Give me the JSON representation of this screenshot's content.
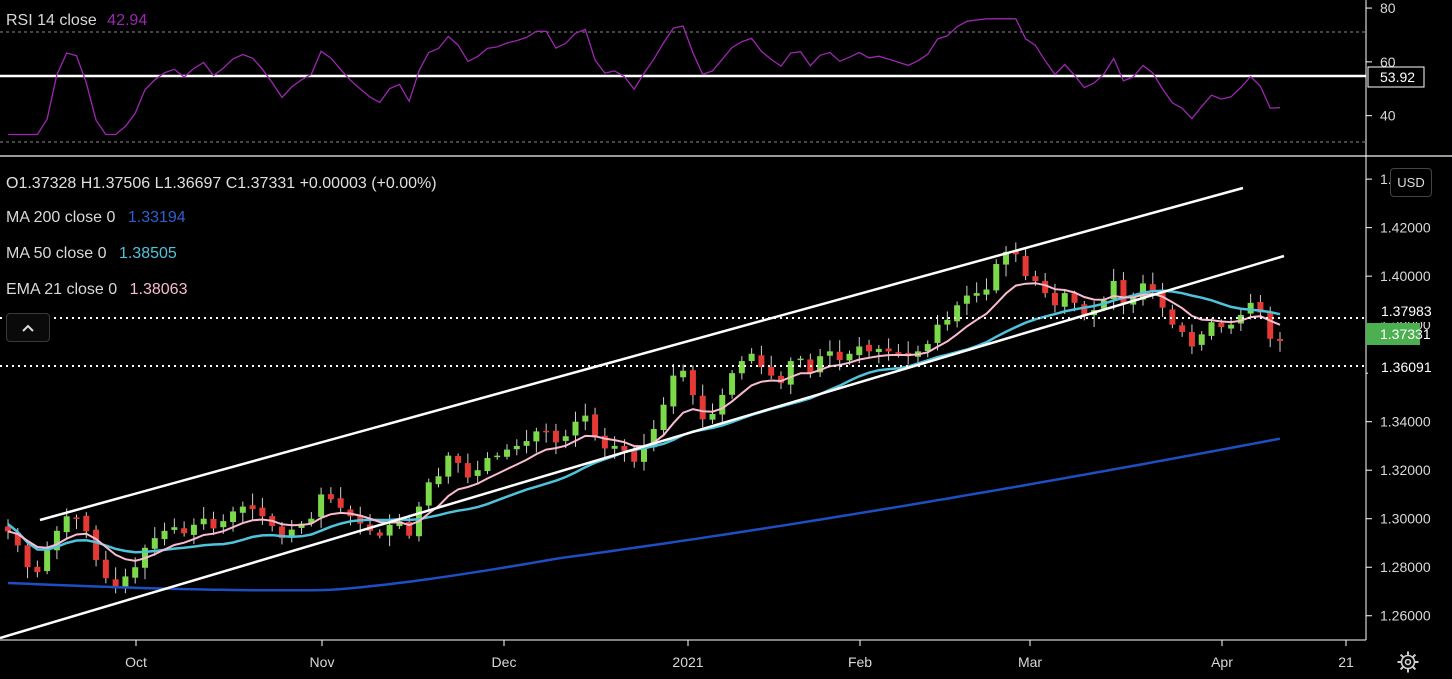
{
  "rsi": {
    "title": "RSI 14 close",
    "value_label": "42.94",
    "color": "#9c27b0",
    "ticks": [
      40,
      60,
      80
    ],
    "upper_band": 70,
    "lower_band": 30,
    "marker_level": "53.92",
    "ylim": [
      25,
      83
    ]
  },
  "price_legend": {
    "ohlc": "O1.37328  H1.37506  L1.36697  C1.37331  +0.00003 (+0.00%)",
    "ma200": {
      "label": "MA 200 close 0",
      "value": "1.33194",
      "color": "#1e4fc2"
    },
    "ma50": {
      "label": "MA 50 close 0",
      "value": "1.38505",
      "color": "#4fc3dc"
    },
    "ema21": {
      "label": "EMA 21 close 0",
      "value": "1.38063",
      "color": "#f8bbd0"
    }
  },
  "currency_button": "USD",
  "price_levels": {
    "upper": "1.37983",
    "current": "1.37331",
    "lower": "1.36091",
    "current_color": "#4caf50"
  },
  "chart_data": {
    "type": "candlestick",
    "ylim": [
      1.25,
      1.445
    ],
    "y_ticks": [
      "1.26000",
      "1.28000",
      "1.30000",
      "1.32000",
      "1.34000",
      "1.36000",
      "1.38000",
      "1.40000",
      "1.42000",
      "1.44000"
    ],
    "x_ticks": [
      "Oct",
      "Nov",
      "Dec",
      "2021",
      "Feb",
      "Mar",
      "Apr",
      "21"
    ],
    "closes": [
      1.2948,
      1.289,
      1.28,
      1.278,
      1.287,
      1.295,
      1.301,
      1.3005,
      1.2948,
      1.283,
      1.2755,
      1.272,
      1.2762,
      1.28,
      1.288,
      1.292,
      1.295,
      1.2965,
      1.294,
      1.2975,
      1.3,
      1.296,
      1.299,
      1.303,
      1.305,
      1.304,
      1.301,
      1.297,
      1.292,
      1.2955,
      1.298,
      1.3,
      1.31,
      1.308,
      1.3045,
      1.301,
      1.298,
      1.295,
      1.293,
      1.2975,
      1.299,
      1.293,
      1.305,
      1.315,
      1.3175,
      1.326,
      1.323,
      1.317,
      1.32,
      1.325,
      1.326,
      1.3285,
      1.33,
      1.332,
      1.336,
      1.336,
      1.3315,
      1.334,
      1.34,
      1.3425,
      1.3335,
      1.329,
      1.33,
      1.328,
      1.3235,
      1.33,
      1.337,
      1.347,
      1.359,
      1.361,
      1.351,
      1.341,
      1.3432,
      1.351,
      1.36,
      1.365,
      1.368,
      1.3625,
      1.359,
      1.356,
      1.365,
      1.366,
      1.36,
      1.367,
      1.369,
      1.3654,
      1.368,
      1.371,
      1.369,
      1.37,
      1.369,
      1.368,
      1.367,
      1.369,
      1.372,
      1.38,
      1.382,
      1.388,
      1.392,
      1.393,
      1.3945,
      1.405,
      1.41,
      1.409,
      1.4,
      1.398,
      1.393,
      1.388,
      1.393,
      1.389,
      1.384,
      1.386,
      1.39,
      1.398,
      1.389,
      1.391,
      1.397,
      1.394,
      1.387,
      1.38,
      1.377,
      1.371,
      1.376,
      1.381,
      1.379,
      1.38,
      1.384,
      1.389,
      1.385,
      1.3742,
      1.3733
    ]
  },
  "trend_channel": {
    "upper": {
      "from": "2020-09-15 @ 1.3040",
      "to": "2021-04-05 @ 1.4310"
    },
    "lower": {
      "from": "2020-09-01 @ 1.2530",
      "to": "2021-04-13 @ 1.3930"
    }
  }
}
